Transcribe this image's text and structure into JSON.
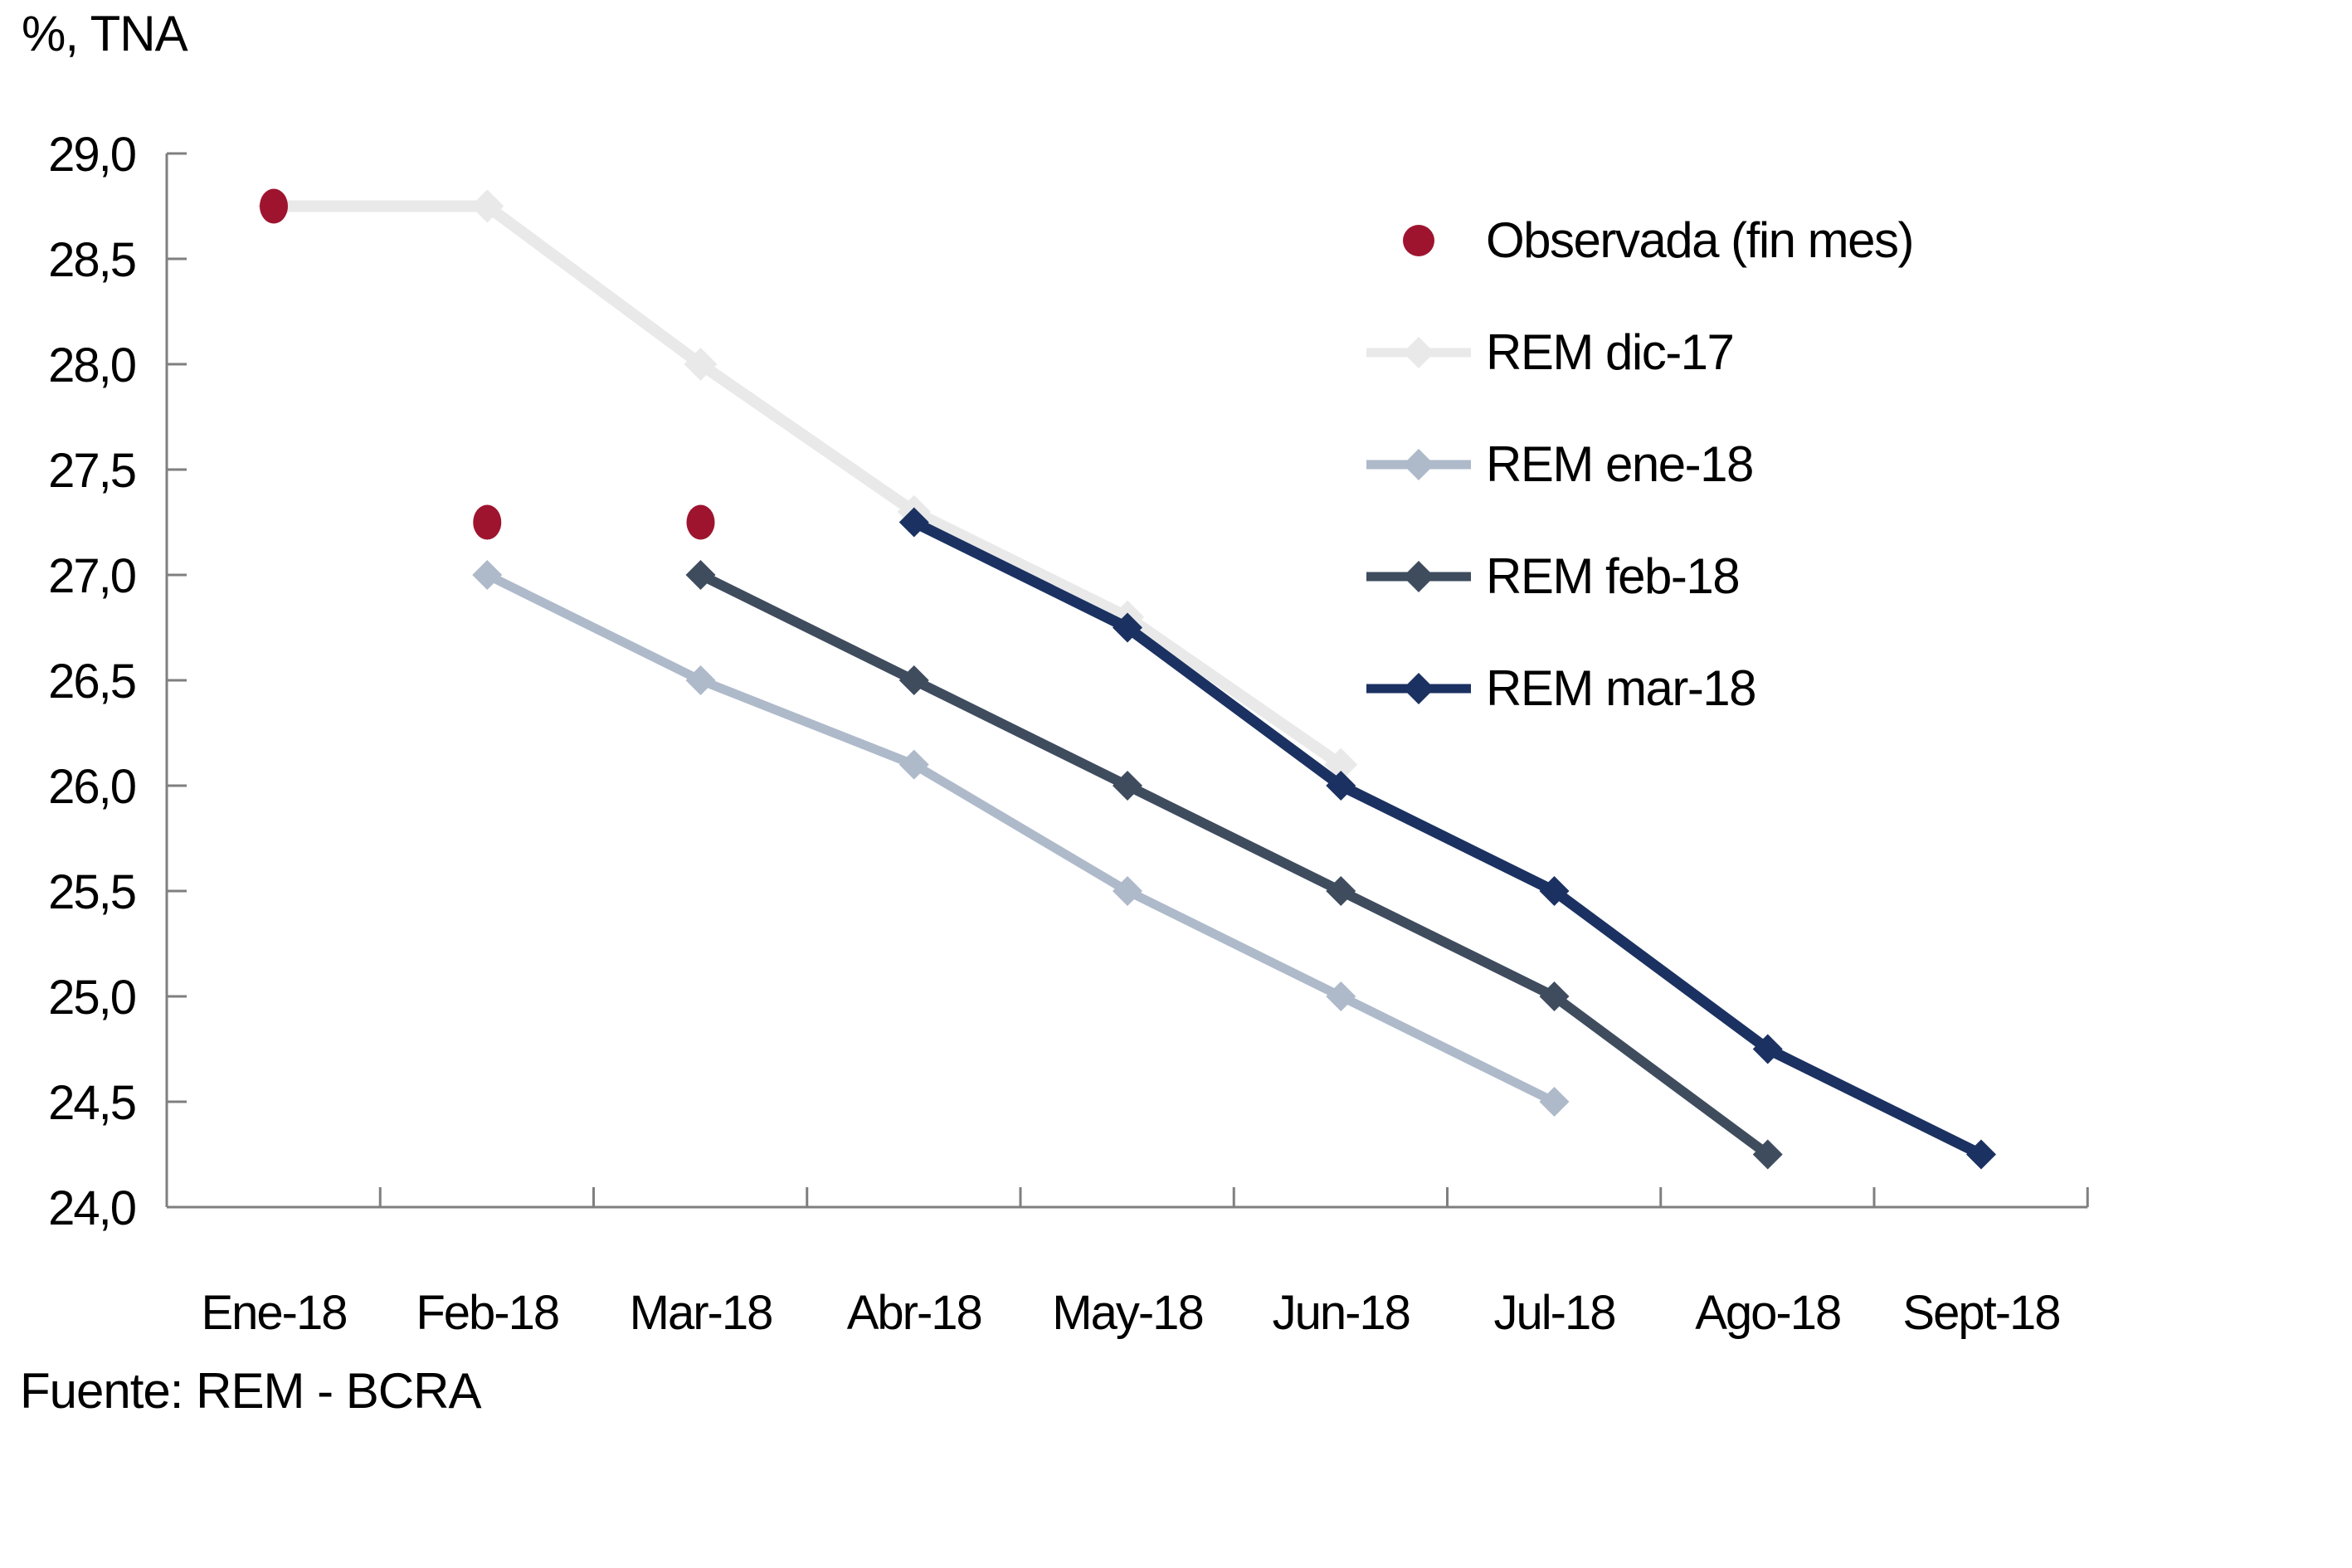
{
  "title": "%, TNA",
  "source": "Fuente: REM - BCRA",
  "colors": {
    "observed": "#9E142F",
    "rem_dic17": "#E9E9E9",
    "rem_ene18": "#AEBACA",
    "rem_feb18": "#3E4C5E",
    "rem_mar18": "#1B3161",
    "axis": "#7F7F7F"
  },
  "legend": {
    "position": "top-right-inside",
    "entries": [
      {
        "label": "Observada (fin mes)",
        "marker": "circle",
        "color": "#9E142F"
      },
      {
        "label": "REM dic-17",
        "marker": "line-diamond",
        "color": "#E9E9E9"
      },
      {
        "label": "REM ene-18",
        "marker": "line-diamond",
        "color": "#AEBACA"
      },
      {
        "label": "REM feb-18",
        "marker": "line-diamond",
        "color": "#3E4C5E"
      },
      {
        "label": "REM mar-18",
        "marker": "line-diamond",
        "color": "#1B3161"
      }
    ]
  },
  "chart_data": {
    "type": "line",
    "title": "%, TNA",
    "xlabel": "",
    "ylabel": "%, TNA",
    "grid": false,
    "legend_position": "top-right-inside",
    "x_categories": [
      "Ene-18",
      "Feb-18",
      "Mar-18",
      "Abr-18",
      "May-18",
      "Jun-18",
      "Jul-18",
      "Ago-18",
      "Sept-18"
    ],
    "y_axis": {
      "min": 24.0,
      "max": 29.0,
      "step": 0.5,
      "tick_labels": [
        "29,0",
        "28,5",
        "28,0",
        "27,5",
        "27,0",
        "26,5",
        "26,0",
        "25,5",
        "25,0",
        "24,5",
        "24,0"
      ]
    },
    "series": [
      {
        "name": "REM dic-17",
        "style": "line",
        "marker": "diamond",
        "color": "#E9E9E9",
        "line_width": 14,
        "marker_size": 20,
        "x": [
          "Ene-18",
          "Feb-18",
          "Mar-18",
          "Abr-18",
          "May-18",
          "Jun-18"
        ],
        "values": [
          28.75,
          28.75,
          28.0,
          27.3,
          26.8,
          26.1
        ]
      },
      {
        "name": "REM ene-18",
        "style": "line",
        "marker": "diamond",
        "color": "#AEBACA",
        "line_width": 11,
        "marker_size": 18,
        "x": [
          "Feb-18",
          "Mar-18",
          "Abr-18",
          "May-18",
          "Jun-18",
          "Jul-18"
        ],
        "values": [
          27.0,
          26.5,
          26.1,
          25.5,
          25.0,
          24.5
        ]
      },
      {
        "name": "REM feb-18",
        "style": "line",
        "marker": "diamond",
        "color": "#3E4C5E",
        "line_width": 12,
        "marker_size": 18,
        "x": [
          "Mar-18",
          "Abr-18",
          "May-18",
          "Jun-18",
          "Jul-18",
          "Ago-18"
        ],
        "values": [
          27.0,
          26.5,
          26.0,
          25.5,
          25.0,
          24.25
        ]
      },
      {
        "name": "REM mar-18",
        "style": "line",
        "marker": "diamond",
        "color": "#1B3161",
        "line_width": 13,
        "marker_size": 18,
        "x": [
          "Abr-18",
          "May-18",
          "Jun-18",
          "Jul-18",
          "Ago-18",
          "Sept-18"
        ],
        "values": [
          27.25,
          26.75,
          26.0,
          25.5,
          24.75,
          24.25
        ]
      },
      {
        "name": "Observada (fin mes)",
        "style": "points",
        "marker": "circle",
        "color": "#9E142F",
        "x": [
          "Ene-18",
          "Feb-18",
          "Mar-18"
        ],
        "values": [
          28.75,
          27.25,
          27.25
        ]
      }
    ]
  }
}
